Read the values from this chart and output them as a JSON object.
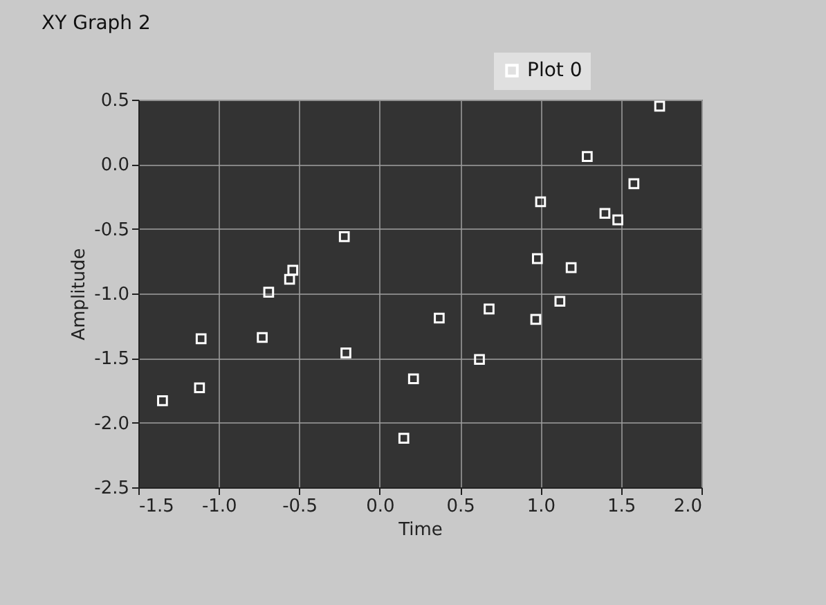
{
  "chart_data": {
    "type": "scatter",
    "title": "XY Graph 2",
    "xlabel": "Time",
    "ylabel": "Amplitude",
    "xlim": [
      -1.5,
      2.0
    ],
    "ylim": [
      -2.5,
      0.5
    ],
    "xticks": [
      -1.5,
      {
        "value": -1,
        "label": "-1.0"
      },
      -0.5,
      {
        "value": 0,
        "label": "0.0"
      },
      0.5,
      {
        "value": 1,
        "label": "1.0"
      },
      1.5,
      {
        "value": 2,
        "label": "2.0"
      }
    ],
    "yticks": [
      -2.5,
      {
        "value": -2,
        "label": "-2.0"
      },
      -1.5,
      {
        "value": -1,
        "label": "-1.0"
      },
      -0.5,
      {
        "value": 0,
        "label": "0.0"
      },
      0.5
    ],
    "grid": true,
    "legend": "top right",
    "marker": "square",
    "series": [
      {
        "name": "Plot 0",
        "color": "#ffffff",
        "x": [
          -1.35,
          -1.11,
          -1.12,
          -0.73,
          -0.69,
          -0.56,
          -0.54,
          -0.22,
          -0.21,
          0.15,
          0.21,
          0.37,
          0.62,
          0.68,
          0.97,
          0.98,
          1.0,
          1.12,
          1.19,
          1.29,
          1.4,
          1.48,
          1.58,
          1.74
        ],
        "values": [
          -1.83,
          -1.35,
          -1.73,
          -1.34,
          -0.99,
          -0.89,
          -0.82,
          -0.56,
          -1.46,
          -2.12,
          -1.66,
          -1.19,
          -1.51,
          -1.12,
          -1.2,
          -0.73,
          -0.29,
          -1.06,
          -0.8,
          0.06,
          -0.38,
          -0.43,
          -0.15,
          0.45
        ]
      }
    ]
  }
}
